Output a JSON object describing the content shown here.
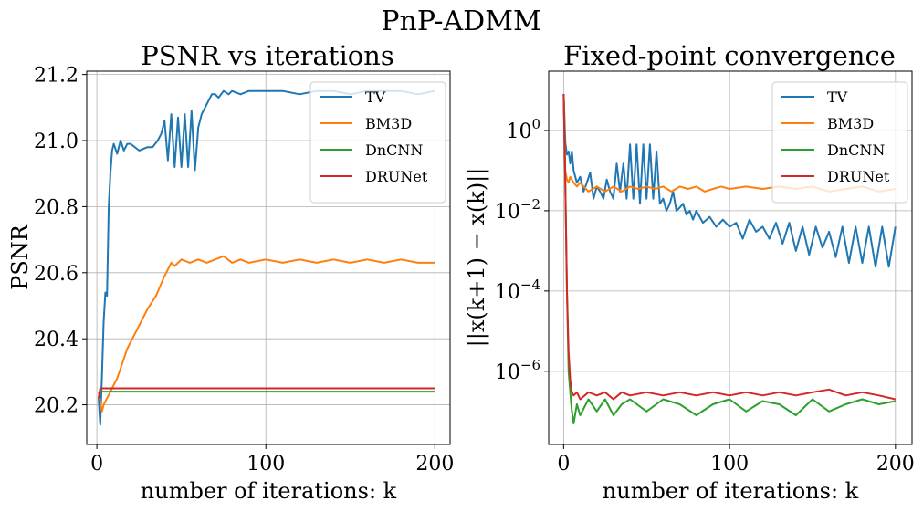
{
  "figure": {
    "suptitle": "PnP-ADMM"
  },
  "colors": {
    "TV": "#1f77b4",
    "BM3D": "#ff7f0e",
    "DnCNN": "#2ca02c",
    "DRUNet": "#d62728",
    "grid": "#b0b0b0"
  },
  "chart_data": [
    {
      "type": "line",
      "title": "PSNR vs iterations",
      "xlabel": "number of iterations: k",
      "ylabel": "PSNR",
      "xlim": [
        -6,
        209
      ],
      "ylim": [
        20.08,
        21.21
      ],
      "yscale": "linear",
      "grid": true,
      "legend_position": "upper right",
      "x_ticks": [
        0,
        100,
        200
      ],
      "x_tick_labels": [
        "0",
        "100",
        "200"
      ],
      "y_ticks": [
        20.2,
        20.4,
        20.6,
        20.8,
        21.0,
        21.2
      ],
      "y_tick_labels": [
        "20.2",
        "20.4",
        "20.6",
        "20.8",
        "21.0",
        "21.2"
      ],
      "series": [
        {
          "name": "TV",
          "x": [
            1,
            2,
            3,
            4,
            5,
            6,
            7,
            8,
            9,
            10,
            12,
            14,
            16,
            18,
            20,
            25,
            30,
            33,
            36,
            38,
            40,
            42,
            44,
            46,
            48,
            50,
            52,
            54,
            56,
            58,
            60,
            62,
            64,
            66,
            68,
            70,
            72,
            75,
            78,
            80,
            85,
            90,
            95,
            100,
            110,
            120,
            130,
            140,
            150,
            160,
            170,
            180,
            190,
            200
          ],
          "values": [
            20.22,
            20.14,
            20.29,
            20.45,
            20.54,
            20.53,
            20.8,
            20.9,
            20.97,
            20.99,
            20.96,
            21.0,
            20.97,
            20.99,
            20.99,
            20.97,
            20.98,
            20.98,
            21.0,
            21.02,
            21.06,
            20.94,
            21.08,
            20.92,
            21.07,
            20.92,
            21.08,
            20.92,
            21.09,
            20.91,
            21.04,
            21.08,
            21.1,
            21.12,
            21.14,
            21.14,
            21.13,
            21.15,
            21.14,
            21.15,
            21.14,
            21.15,
            21.15,
            21.15,
            21.15,
            21.14,
            21.15,
            21.15,
            21.14,
            21.15,
            21.15,
            21.15,
            21.14,
            21.15
          ]
        },
        {
          "name": "BM3D",
          "x": [
            1,
            2,
            3,
            4,
            6,
            8,
            10,
            12,
            14,
            16,
            18,
            20,
            25,
            30,
            35,
            40,
            42,
            44,
            46,
            50,
            55,
            60,
            65,
            70,
            75,
            80,
            85,
            90,
            100,
            110,
            120,
            130,
            140,
            150,
            160,
            170,
            180,
            190,
            200
          ],
          "values": [
            20.24,
            20.21,
            20.18,
            20.2,
            20.22,
            20.24,
            20.26,
            20.28,
            20.31,
            20.34,
            20.37,
            20.39,
            20.44,
            20.49,
            20.53,
            20.59,
            20.61,
            20.63,
            20.62,
            20.64,
            20.63,
            20.64,
            20.63,
            20.64,
            20.65,
            20.63,
            20.64,
            20.63,
            20.64,
            20.63,
            20.64,
            20.63,
            20.64,
            20.63,
            20.64,
            20.63,
            20.64,
            20.63,
            20.63
          ]
        },
        {
          "name": "DnCNN",
          "x": [
            1,
            2,
            3,
            5,
            200
          ],
          "values": [
            20.22,
            20.24,
            20.24,
            20.24,
            20.24
          ]
        },
        {
          "name": "DRUNet",
          "x": [
            1,
            2,
            3,
            5,
            200
          ],
          "values": [
            20.22,
            20.25,
            20.25,
            20.25,
            20.25
          ]
        }
      ]
    },
    {
      "type": "line",
      "title": "Fixed-point convergence",
      "xlabel": "number of iterations: k",
      "ylabel": "||x(k+1) − x(k)||",
      "xlim": [
        -9,
        210
      ],
      "ylim": [
        1.5e-08,
        30
      ],
      "yscale": "log",
      "grid": true,
      "legend_position": "upper right",
      "x_ticks": [
        0,
        100,
        200
      ],
      "x_tick_labels": [
        "0",
        "100",
        "200"
      ],
      "y_ticks": [
        1e-06,
        0.0001,
        0.01,
        1
      ],
      "y_tick_labels": [
        "10",
        "10",
        "10",
        "10"
      ],
      "y_tick_exponents": [
        "−6",
        "−4",
        "−2",
        "0"
      ],
      "series": [
        {
          "name": "TV",
          "x": [
            0,
            1,
            2,
            3,
            4,
            5,
            6,
            8,
            10,
            12,
            14,
            16,
            18,
            20,
            22,
            24,
            26,
            28,
            30,
            32,
            34,
            36,
            38,
            40,
            42,
            44,
            46,
            48,
            50,
            52,
            54,
            56,
            58,
            60,
            62,
            64,
            66,
            68,
            70,
            72,
            74,
            76,
            78,
            80,
            84,
            88,
            92,
            96,
            100,
            104,
            108,
            112,
            116,
            120,
            124,
            128,
            132,
            136,
            140,
            144,
            148,
            152,
            156,
            160,
            164,
            168,
            172,
            176,
            180,
            184,
            188,
            192,
            196,
            200
          ],
          "values": [
            8.0,
            0.5,
            0.25,
            0.3,
            0.15,
            0.3,
            0.1,
            0.05,
            0.07,
            0.03,
            0.05,
            0.09,
            0.02,
            0.04,
            0.03,
            0.02,
            0.06,
            0.03,
            0.02,
            0.15,
            0.03,
            0.15,
            0.02,
            0.45,
            0.02,
            0.45,
            0.015,
            0.45,
            0.02,
            0.45,
            0.02,
            0.3,
            0.015,
            0.02,
            0.01,
            0.015,
            0.03,
            0.01,
            0.012,
            0.015,
            0.008,
            0.01,
            0.006,
            0.01,
            0.005,
            0.007,
            0.004,
            0.006,
            0.004,
            0.005,
            0.002,
            0.006,
            0.003,
            0.004,
            0.002,
            0.005,
            0.0015,
            0.005,
            0.001,
            0.004,
            0.0008,
            0.004,
            0.0012,
            0.003,
            0.0007,
            0.004,
            0.0005,
            0.004,
            0.0005,
            0.004,
            0.0004,
            0.004,
            0.0004,
            0.004
          ]
        },
        {
          "name": "BM3D",
          "x": [
            0,
            1,
            2,
            3,
            4,
            6,
            8,
            10,
            15,
            20,
            25,
            30,
            35,
            40,
            45,
            50,
            55,
            60,
            65,
            70,
            75,
            80,
            85,
            90,
            95,
            100,
            110,
            120,
            130,
            140,
            150,
            160,
            170,
            180,
            190,
            200
          ],
          "values": [
            8.0,
            0.1,
            0.06,
            0.05,
            0.07,
            0.05,
            0.04,
            0.05,
            0.03,
            0.04,
            0.03,
            0.04,
            0.03,
            0.04,
            0.035,
            0.04,
            0.035,
            0.04,
            0.03,
            0.04,
            0.035,
            0.04,
            0.03,
            0.035,
            0.04,
            0.035,
            0.04,
            0.035,
            0.04,
            0.035,
            0.04,
            0.03,
            0.035,
            0.04,
            0.03,
            0.035
          ]
        },
        {
          "name": "DnCNN",
          "x": [
            0,
            1,
            2,
            3,
            4,
            5,
            6,
            8,
            10,
            15,
            20,
            25,
            30,
            35,
            40,
            50,
            60,
            70,
            80,
            90,
            100,
            110,
            120,
            130,
            140,
            150,
            160,
            170,
            180,
            190,
            200
          ],
          "values": [
            8.0,
            0.05,
            0.0001,
            1e-06,
            3e-07,
            1e-07,
            5e-08,
            1.5e-07,
            8e-08,
            2e-07,
            1e-07,
            2e-07,
            8e-08,
            1.5e-07,
            2e-07,
            1e-07,
            2e-07,
            1.5e-07,
            8e-08,
            1.5e-07,
            2e-07,
            1e-07,
            1.8e-07,
            1.5e-07,
            8e-08,
            2e-07,
            1e-07,
            1.5e-07,
            2e-07,
            1.5e-07,
            1.8e-07
          ]
        },
        {
          "name": "DRUNet",
          "x": [
            0,
            1,
            2,
            3,
            4,
            5,
            6,
            8,
            10,
            15,
            20,
            25,
            30,
            35,
            40,
            50,
            60,
            70,
            80,
            90,
            100,
            110,
            120,
            130,
            140,
            150,
            160,
            170,
            180,
            190,
            200
          ],
          "values": [
            8.0,
            0.05,
            0.0001,
            3e-06,
            6e-07,
            3e-07,
            2.5e-07,
            3e-07,
            2e-07,
            3e-07,
            2.5e-07,
            3e-07,
            2e-07,
            3e-07,
            2.5e-07,
            3e-07,
            2.5e-07,
            3e-07,
            2.5e-07,
            3e-07,
            2.5e-07,
            3e-07,
            2.5e-07,
            3e-07,
            2.5e-07,
            3e-07,
            3.5e-07,
            2.5e-07,
            3e-07,
            2.5e-07,
            2e-07
          ]
        }
      ]
    }
  ]
}
